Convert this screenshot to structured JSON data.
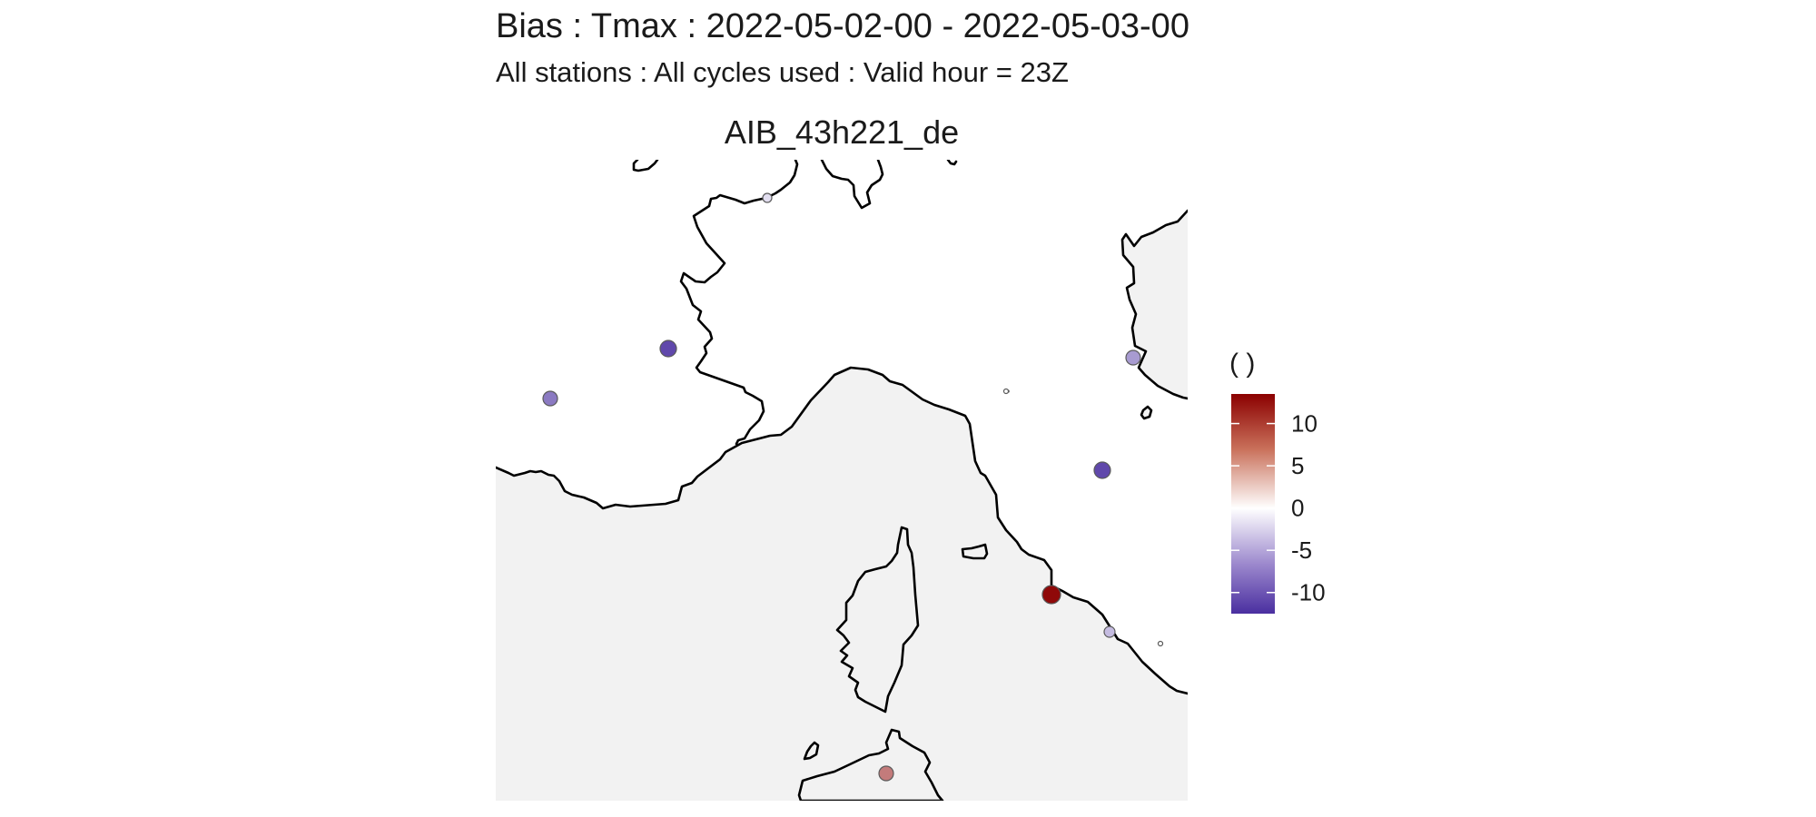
{
  "header": {
    "title": "Bias : Tmax : 2022-05-02-00 - 2022-05-03-00",
    "subtitle": "All stations : All cycles used : Valid hour = 23Z"
  },
  "panel": {
    "title": "AIB_43h221_de"
  },
  "colors": {
    "land": "#f2f2f2",
    "sea": "#ffffff",
    "coastline": "#000000",
    "scale_low": "#4a2fa0",
    "scale_mid": "#ffffff",
    "scale_high": "#8b0000"
  },
  "legend": {
    "title": "( )",
    "ticks": [
      10,
      5,
      0,
      -5,
      -10
    ],
    "tick_labels": [
      "10",
      "5",
      "0",
      "-5",
      "-10"
    ],
    "range": [
      -12.5,
      13.5
    ]
  },
  "stations_bias": [
    {
      "id": "s1",
      "bias": -2
    },
    {
      "id": "s2",
      "bias": -11
    },
    {
      "id": "s3",
      "bias": -8
    },
    {
      "id": "s4",
      "bias": -6
    },
    {
      "id": "s5",
      "bias": 0
    },
    {
      "id": "s6",
      "bias": -11
    },
    {
      "id": "s7",
      "bias": 13
    },
    {
      "id": "s8",
      "bias": -4
    },
    {
      "id": "s9",
      "bias": 0
    },
    {
      "id": "s10",
      "bias": 7
    }
  ]
}
